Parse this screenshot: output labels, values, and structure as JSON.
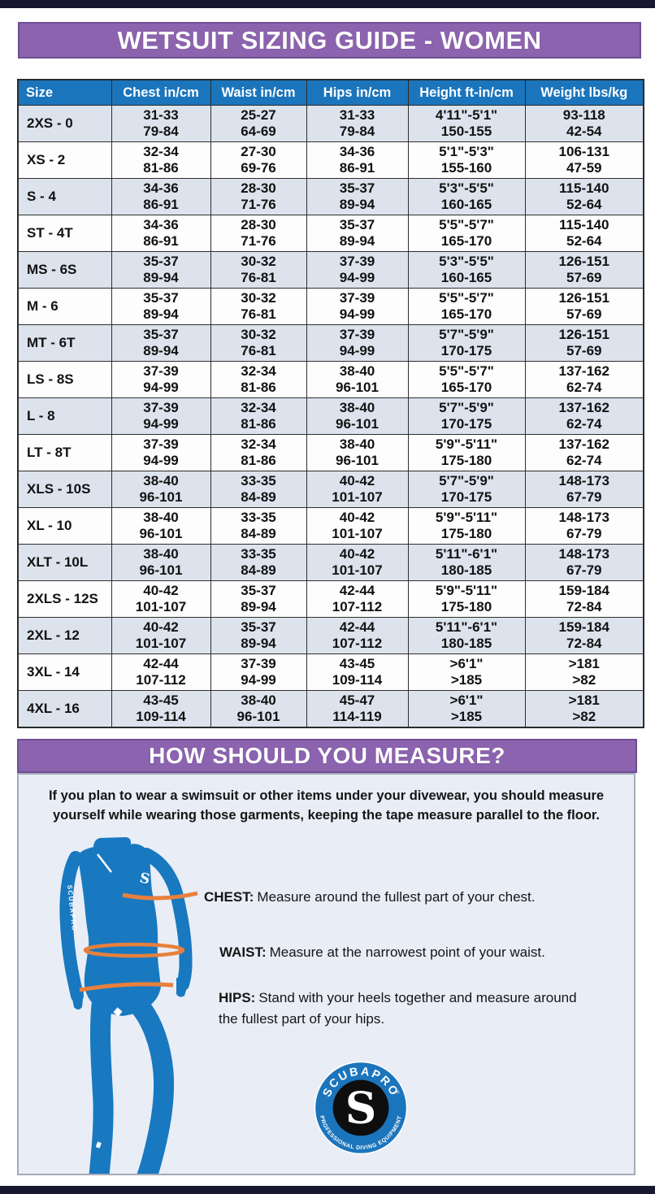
{
  "banners": {
    "title": "WETSUIT SIZING GUIDE - WOMEN",
    "measure": "HOW SHOULD YOU MEASURE?"
  },
  "colors": {
    "banner_purple": "#8c63ae",
    "banner_border": "#6e4f94",
    "header_blue": "#1b75bc",
    "row_shade": "#dce3ed",
    "panel_bg": "#e9edf6",
    "navy_bar": "#181830",
    "wetsuit_blue": "#1879c0",
    "measure_orange": "#e8803c"
  },
  "table": {
    "columns": [
      "Size",
      "Chest in/cm",
      "Waist in/cm",
      "Hips in/cm",
      "Height ft-in/cm",
      "Weight lbs/kg"
    ],
    "rows": [
      {
        "size": "2XS - 0",
        "cells": [
          [
            "31-33",
            "79-84"
          ],
          [
            "25-27",
            "64-69"
          ],
          [
            "31-33",
            "79-84"
          ],
          [
            "4'11\"-5'1\"",
            "150-155"
          ],
          [
            "93-118",
            "42-54"
          ]
        ]
      },
      {
        "size": "XS - 2",
        "cells": [
          [
            "32-34",
            "81-86"
          ],
          [
            "27-30",
            "69-76"
          ],
          [
            "34-36",
            "86-91"
          ],
          [
            "5'1\"-5'3\"",
            "155-160"
          ],
          [
            "106-131",
            "47-59"
          ]
        ]
      },
      {
        "size": "S - 4",
        "cells": [
          [
            "34-36",
            "86-91"
          ],
          [
            "28-30",
            "71-76"
          ],
          [
            "35-37",
            "89-94"
          ],
          [
            "5'3\"-5'5\"",
            "160-165"
          ],
          [
            "115-140",
            "52-64"
          ]
        ]
      },
      {
        "size": "ST - 4T",
        "cells": [
          [
            "34-36",
            "86-91"
          ],
          [
            "28-30",
            "71-76"
          ],
          [
            "35-37",
            "89-94"
          ],
          [
            "5'5\"-5'7\"",
            "165-170"
          ],
          [
            "115-140",
            "52-64"
          ]
        ]
      },
      {
        "size": "MS - 6S",
        "cells": [
          [
            "35-37",
            "89-94"
          ],
          [
            "30-32",
            "76-81"
          ],
          [
            "37-39",
            "94-99"
          ],
          [
            "5'3\"-5'5\"",
            "160-165"
          ],
          [
            "126-151",
            "57-69"
          ]
        ]
      },
      {
        "size": "M - 6",
        "cells": [
          [
            "35-37",
            "89-94"
          ],
          [
            "30-32",
            "76-81"
          ],
          [
            "37-39",
            "94-99"
          ],
          [
            "5'5\"-5'7\"",
            "165-170"
          ],
          [
            "126-151",
            "57-69"
          ]
        ]
      },
      {
        "size": "MT - 6T",
        "cells": [
          [
            "35-37",
            "89-94"
          ],
          [
            "30-32",
            "76-81"
          ],
          [
            "37-39",
            "94-99"
          ],
          [
            "5'7\"-5'9\"",
            "170-175"
          ],
          [
            "126-151",
            "57-69"
          ]
        ]
      },
      {
        "size": "LS - 8S",
        "cells": [
          [
            "37-39",
            "94-99"
          ],
          [
            "32-34",
            "81-86"
          ],
          [
            "38-40",
            "96-101"
          ],
          [
            "5'5\"-5'7\"",
            "165-170"
          ],
          [
            "137-162",
            "62-74"
          ]
        ]
      },
      {
        "size": "L - 8",
        "cells": [
          [
            "37-39",
            "94-99"
          ],
          [
            "32-34",
            "81-86"
          ],
          [
            "38-40",
            "96-101"
          ],
          [
            "5'7\"-5'9\"",
            "170-175"
          ],
          [
            "137-162",
            "62-74"
          ]
        ]
      },
      {
        "size": "LT - 8T",
        "cells": [
          [
            "37-39",
            "94-99"
          ],
          [
            "32-34",
            "81-86"
          ],
          [
            "38-40",
            "96-101"
          ],
          [
            "5'9\"-5'11\"",
            "175-180"
          ],
          [
            "137-162",
            "62-74"
          ]
        ]
      },
      {
        "size": "XLS - 10S",
        "cells": [
          [
            "38-40",
            "96-101"
          ],
          [
            "33-35",
            "84-89"
          ],
          [
            "40-42",
            "101-107"
          ],
          [
            "5'7\"-5'9\"",
            "170-175"
          ],
          [
            "148-173",
            "67-79"
          ]
        ]
      },
      {
        "size": "XL - 10",
        "cells": [
          [
            "38-40",
            "96-101"
          ],
          [
            "33-35",
            "84-89"
          ],
          [
            "40-42",
            "101-107"
          ],
          [
            "5'9\"-5'11\"",
            "175-180"
          ],
          [
            "148-173",
            "67-79"
          ]
        ]
      },
      {
        "size": "XLT - 10L",
        "cells": [
          [
            "38-40",
            "96-101"
          ],
          [
            "33-35",
            "84-89"
          ],
          [
            "40-42",
            "101-107"
          ],
          [
            "5'11\"-6'1\"",
            "180-185"
          ],
          [
            "148-173",
            "67-79"
          ]
        ]
      },
      {
        "size": "2XLS - 12S",
        "cells": [
          [
            "40-42",
            "101-107"
          ],
          [
            "35-37",
            "89-94"
          ],
          [
            "42-44",
            "107-112"
          ],
          [
            "5'9\"-5'11\"",
            "175-180"
          ],
          [
            "159-184",
            "72-84"
          ]
        ]
      },
      {
        "size": "2XL - 12",
        "cells": [
          [
            "40-42",
            "101-107"
          ],
          [
            "35-37",
            "89-94"
          ],
          [
            "42-44",
            "107-112"
          ],
          [
            "5'11\"-6'1\"",
            "180-185"
          ],
          [
            "159-184",
            "72-84"
          ]
        ]
      },
      {
        "size": "3XL - 14",
        "cells": [
          [
            "42-44",
            "107-112"
          ],
          [
            "37-39",
            "94-99"
          ],
          [
            "43-45",
            "109-114"
          ],
          [
            ">6'1\"",
            ">185"
          ],
          [
            ">181",
            ">82"
          ]
        ]
      },
      {
        "size": "4XL - 16",
        "cells": [
          [
            "43-45",
            "109-114"
          ],
          [
            "38-40",
            "96-101"
          ],
          [
            "45-47",
            "114-119"
          ],
          [
            ">6'1\"",
            ">185"
          ],
          [
            ">181",
            ">82"
          ]
        ]
      }
    ]
  },
  "measure": {
    "intro": "If you plan to wear a swimsuit or other items under your divewear, you should measure yourself while wearing those garments, keeping the tape measure parallel to the floor.",
    "items": [
      {
        "label": "CHEST:",
        "text": "Measure around the fullest part of your chest."
      },
      {
        "label": "WAIST:",
        "text": "Measure at the narrowest point of your waist."
      },
      {
        "label": "HIPS:",
        "text": "Stand with your heels together and measure around the fullest part of your hips."
      }
    ]
  },
  "figure": {
    "sleeve_text": "SCUBAPRO",
    "chest_monogram": "S"
  },
  "logo": {
    "top_text": "SCUBAPRO",
    "registered_mark": "®",
    "bottom_text": "PROFESSIONAL DIVING EQUIPMENT",
    "monogram": "S"
  }
}
